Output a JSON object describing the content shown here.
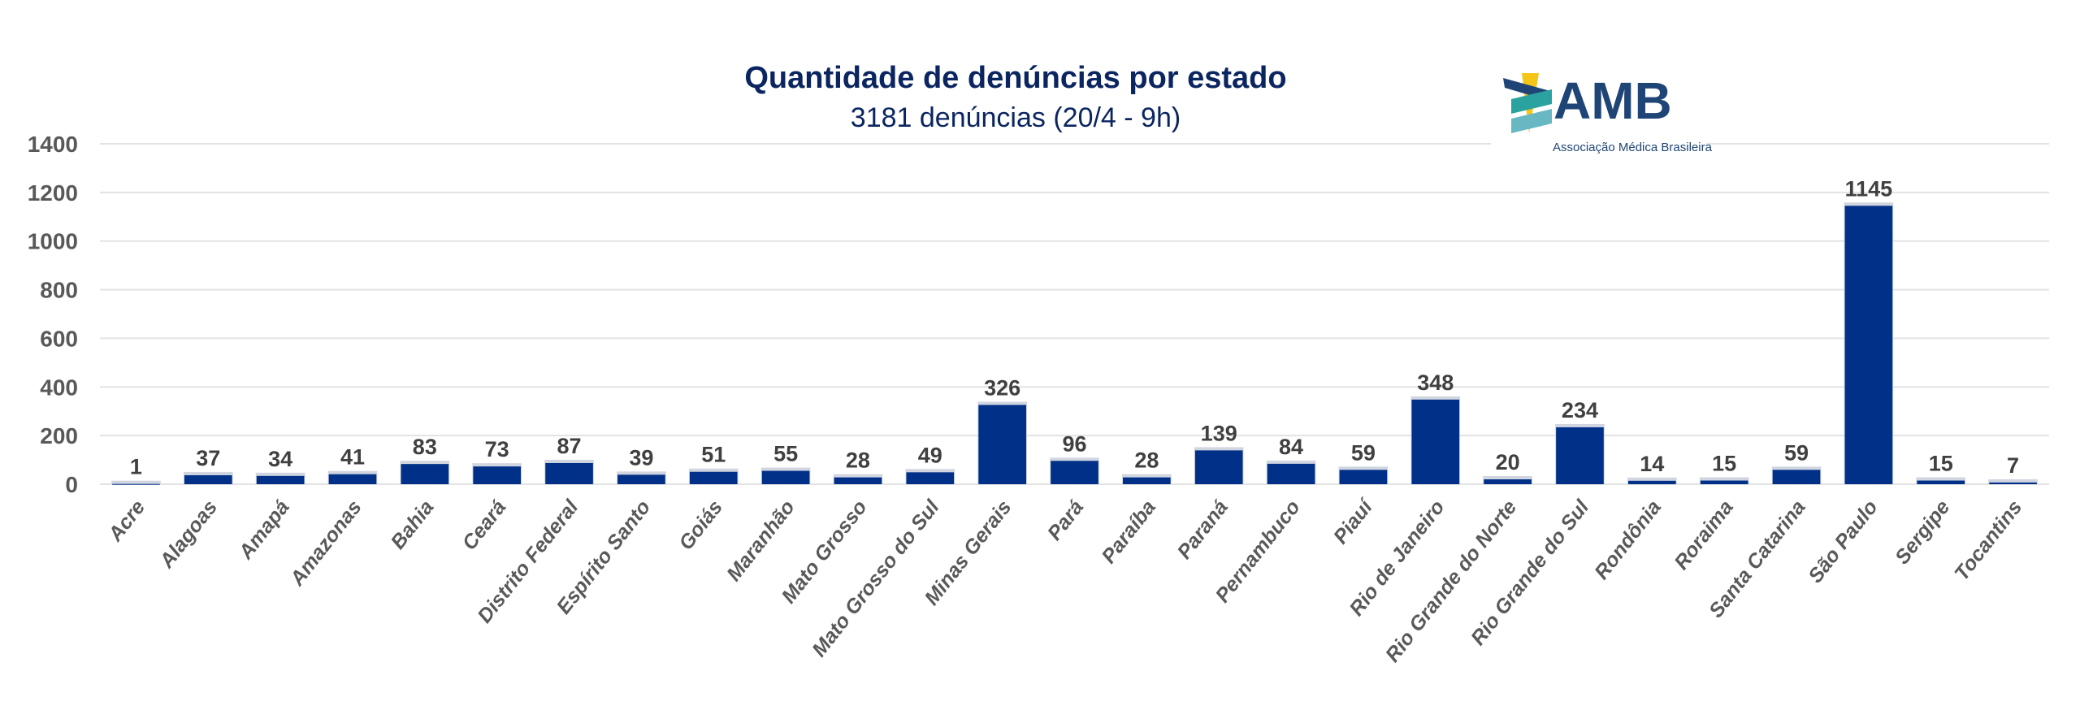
{
  "chart_data": {
    "type": "bar",
    "title": "Quantidade de denúncias por estado",
    "subtitle": "3181 denúncias (20/4 - 9h)",
    "xlabel": "",
    "ylabel": "",
    "ylim": [
      0,
      1400
    ],
    "yticks": [
      0,
      200,
      400,
      600,
      800,
      1000,
      1200,
      1400
    ],
    "grid": true,
    "bar_color": "#003087",
    "categories": [
      "Acre",
      "Alagoas",
      "Amapá",
      "Amazonas",
      "Bahia",
      "Ceará",
      "Distrito Federal",
      "Espírito Santo",
      "Goiás",
      "Maranhão",
      "Mato Grosso",
      "Mato Grosso do Sul",
      "Minas Gerais",
      "Pará",
      "Paraíba",
      "Paraná",
      "Pernambuco",
      "Piauí",
      "Rio de Janeiro",
      "Rio Grande do Norte",
      "Rio Grande do Sul",
      "Rondônia",
      "Roraima",
      "Santa Catarina",
      "São Paulo",
      "Sergipe",
      "Tocantins"
    ],
    "values": [
      1,
      37,
      34,
      41,
      83,
      73,
      87,
      39,
      51,
      55,
      28,
      49,
      326,
      96,
      28,
      139,
      84,
      59,
      348,
      20,
      234,
      14,
      15,
      59,
      1145,
      15,
      7
    ]
  },
  "logo": {
    "text": "AMB",
    "tagline": "Associação Médica Brasileira",
    "colors": {
      "navy": "#1f4576",
      "teal": "#1a8a8a",
      "yellow": "#f5c518"
    }
  }
}
